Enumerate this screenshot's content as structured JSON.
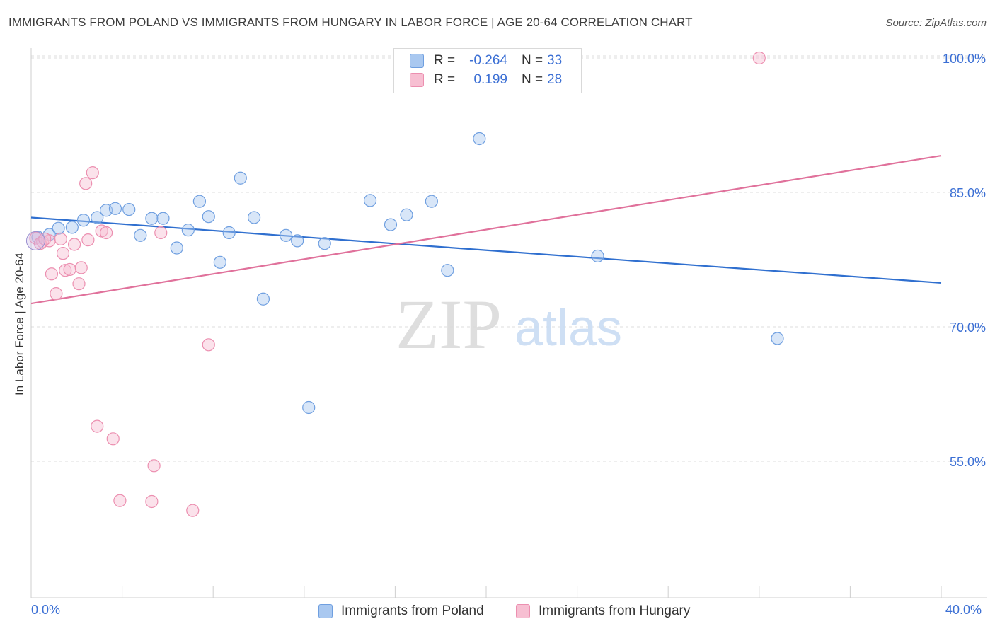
{
  "title": "IMMIGRANTS FROM POLAND VS IMMIGRANTS FROM HUNGARY IN LABOR FORCE | AGE 20-64 CORRELATION CHART",
  "source": "Source: ZipAtlas.com",
  "watermark": {
    "zip": "ZIP",
    "atlas": "atlas"
  },
  "legend": {
    "rows": [
      {
        "r_label": "R =",
        "r_value": "-0.264",
        "n_label": "N =",
        "n_value": "33",
        "color": "#a9c8f0",
        "stroke": "#6f9fe0"
      },
      {
        "r_label": "R =",
        "r_value": "0.199",
        "n_label": "N =",
        "n_value": "28",
        "color": "#f7bfd2",
        "stroke": "#ec8fb0"
      }
    ]
  },
  "chart_data": {
    "type": "scatter",
    "title": "IMMIGRANTS FROM POLAND VS IMMIGRANTS FROM HUNGARY IN LABOR FORCE | AGE 20-64 CORRELATION CHART",
    "xlabel": "",
    "ylabel": "In Labor Force | Age 20-64",
    "xlim": [
      0,
      40
    ],
    "ylim": [
      43,
      101
    ],
    "x_tick_labels": [
      "0.0%",
      "40.0%"
    ],
    "y_ticks": [
      55,
      70,
      85,
      100
    ],
    "y_tick_labels": [
      "55.0%",
      "70.0%",
      "85.0%",
      "100.0%"
    ],
    "grid": true,
    "legend_position": "bottom",
    "series": [
      {
        "name": "Immigrants from Poland",
        "color": "#6f9fe0",
        "fill": "#a9c8f0",
        "line_color": "#2f6fcf",
        "trend": {
          "x": [
            0,
            40
          ],
          "y": [
            82.2,
            74.9
          ]
        },
        "points": [
          {
            "x": 0.3,
            "y": 80.0
          },
          {
            "x": 0.8,
            "y": 80.3
          },
          {
            "x": 1.2,
            "y": 81.0
          },
          {
            "x": 1.8,
            "y": 81.1
          },
          {
            "x": 2.3,
            "y": 81.9
          },
          {
            "x": 2.9,
            "y": 82.2
          },
          {
            "x": 3.3,
            "y": 83.0
          },
          {
            "x": 3.7,
            "y": 83.2
          },
          {
            "x": 4.3,
            "y": 83.1
          },
          {
            "x": 4.8,
            "y": 80.2
          },
          {
            "x": 5.3,
            "y": 82.1
          },
          {
            "x": 5.8,
            "y": 82.1
          },
          {
            "x": 6.4,
            "y": 78.8
          },
          {
            "x": 6.9,
            "y": 80.8
          },
          {
            "x": 7.4,
            "y": 84.0
          },
          {
            "x": 7.8,
            "y": 82.3
          },
          {
            "x": 8.3,
            "y": 77.2
          },
          {
            "x": 8.7,
            "y": 80.5
          },
          {
            "x": 9.2,
            "y": 86.6
          },
          {
            "x": 9.8,
            "y": 82.2
          },
          {
            "x": 10.2,
            "y": 73.1
          },
          {
            "x": 11.2,
            "y": 80.2
          },
          {
            "x": 11.7,
            "y": 79.6
          },
          {
            "x": 12.2,
            "y": 61.0
          },
          {
            "x": 12.9,
            "y": 79.3
          },
          {
            "x": 14.9,
            "y": 84.1
          },
          {
            "x": 15.8,
            "y": 81.4
          },
          {
            "x": 16.5,
            "y": 82.5
          },
          {
            "x": 17.6,
            "y": 84.0
          },
          {
            "x": 18.3,
            "y": 76.3
          },
          {
            "x": 19.7,
            "y": 91.0
          },
          {
            "x": 24.9,
            "y": 77.9
          },
          {
            "x": 32.8,
            "y": 68.7
          }
        ]
      },
      {
        "name": "Immigrants from Hungary",
        "color": "#ec8fb0",
        "fill": "#f7bfd2",
        "line_color": "#e0719b",
        "trend": {
          "x": [
            0,
            40
          ],
          "y": [
            72.6,
            89.1
          ]
        },
        "points": [
          {
            "x": 0.2,
            "y": 79.9
          },
          {
            "x": 0.5,
            "y": 79.5
          },
          {
            "x": 0.8,
            "y": 79.6
          },
          {
            "x": 0.9,
            "y": 75.9
          },
          {
            "x": 1.1,
            "y": 73.7
          },
          {
            "x": 1.3,
            "y": 79.8
          },
          {
            "x": 1.4,
            "y": 78.2
          },
          {
            "x": 1.5,
            "y": 76.3
          },
          {
            "x": 1.7,
            "y": 76.4
          },
          {
            "x": 1.9,
            "y": 79.2
          },
          {
            "x": 2.1,
            "y": 74.8
          },
          {
            "x": 2.2,
            "y": 76.6
          },
          {
            "x": 2.4,
            "y": 86.0
          },
          {
            "x": 2.5,
            "y": 79.7
          },
          {
            "x": 2.7,
            "y": 87.2
          },
          {
            "x": 2.9,
            "y": 58.9
          },
          {
            "x": 3.1,
            "y": 80.7
          },
          {
            "x": 3.3,
            "y": 80.5
          },
          {
            "x": 3.6,
            "y": 57.5
          },
          {
            "x": 3.9,
            "y": 50.6
          },
          {
            "x": 5.3,
            "y": 50.5
          },
          {
            "x": 5.4,
            "y": 54.5
          },
          {
            "x": 5.7,
            "y": 80.5
          },
          {
            "x": 7.1,
            "y": 49.5
          },
          {
            "x": 7.8,
            "y": 68.0
          },
          {
            "x": 32.0,
            "y": 100.0
          },
          {
            "x": 0.4,
            "y": 79.3
          },
          {
            "x": 0.6,
            "y": 79.8
          }
        ]
      }
    ]
  }
}
